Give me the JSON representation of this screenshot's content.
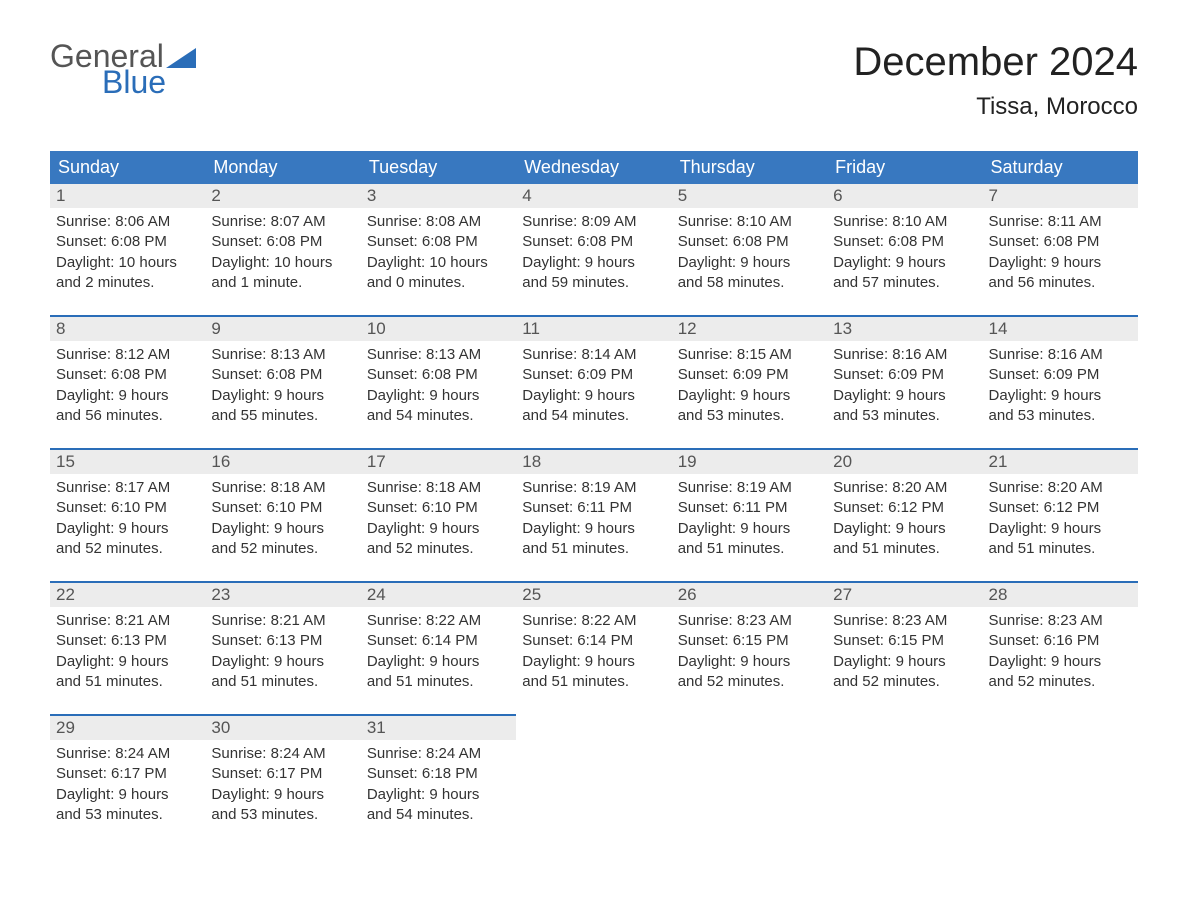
{
  "logo": {
    "top": "General",
    "bottom": "Blue",
    "text_color_top": "#555555",
    "text_color_bottom": "#2a6db8",
    "flag_color": "#2a6db8"
  },
  "title": "December 2024",
  "location": "Tissa, Morocco",
  "colors": {
    "header_bg": "#3878c0",
    "header_text": "#ffffff",
    "rule": "#2a6db8",
    "daynum_bg": "#ececec",
    "body_text": "#333333",
    "background": "#ffffff"
  },
  "typography": {
    "title_fontsize": 40,
    "location_fontsize": 24,
    "header_fontsize": 18,
    "daynum_fontsize": 17,
    "body_fontsize": 15
  },
  "day_headers": [
    "Sunday",
    "Monday",
    "Tuesday",
    "Wednesday",
    "Thursday",
    "Friday",
    "Saturday"
  ],
  "weeks": [
    [
      {
        "n": "1",
        "sunrise": "Sunrise: 8:06 AM",
        "sunset": "Sunset: 6:08 PM",
        "d1": "Daylight: 10 hours",
        "d2": "and 2 minutes."
      },
      {
        "n": "2",
        "sunrise": "Sunrise: 8:07 AM",
        "sunset": "Sunset: 6:08 PM",
        "d1": "Daylight: 10 hours",
        "d2": "and 1 minute."
      },
      {
        "n": "3",
        "sunrise": "Sunrise: 8:08 AM",
        "sunset": "Sunset: 6:08 PM",
        "d1": "Daylight: 10 hours",
        "d2": "and 0 minutes."
      },
      {
        "n": "4",
        "sunrise": "Sunrise: 8:09 AM",
        "sunset": "Sunset: 6:08 PM",
        "d1": "Daylight: 9 hours",
        "d2": "and 59 minutes."
      },
      {
        "n": "5",
        "sunrise": "Sunrise: 8:10 AM",
        "sunset": "Sunset: 6:08 PM",
        "d1": "Daylight: 9 hours",
        "d2": "and 58 minutes."
      },
      {
        "n": "6",
        "sunrise": "Sunrise: 8:10 AM",
        "sunset": "Sunset: 6:08 PM",
        "d1": "Daylight: 9 hours",
        "d2": "and 57 minutes."
      },
      {
        "n": "7",
        "sunrise": "Sunrise: 8:11 AM",
        "sunset": "Sunset: 6:08 PM",
        "d1": "Daylight: 9 hours",
        "d2": "and 56 minutes."
      }
    ],
    [
      {
        "n": "8",
        "sunrise": "Sunrise: 8:12 AM",
        "sunset": "Sunset: 6:08 PM",
        "d1": "Daylight: 9 hours",
        "d2": "and 56 minutes."
      },
      {
        "n": "9",
        "sunrise": "Sunrise: 8:13 AM",
        "sunset": "Sunset: 6:08 PM",
        "d1": "Daylight: 9 hours",
        "d2": "and 55 minutes."
      },
      {
        "n": "10",
        "sunrise": "Sunrise: 8:13 AM",
        "sunset": "Sunset: 6:08 PM",
        "d1": "Daylight: 9 hours",
        "d2": "and 54 minutes."
      },
      {
        "n": "11",
        "sunrise": "Sunrise: 8:14 AM",
        "sunset": "Sunset: 6:09 PM",
        "d1": "Daylight: 9 hours",
        "d2": "and 54 minutes."
      },
      {
        "n": "12",
        "sunrise": "Sunrise: 8:15 AM",
        "sunset": "Sunset: 6:09 PM",
        "d1": "Daylight: 9 hours",
        "d2": "and 53 minutes."
      },
      {
        "n": "13",
        "sunrise": "Sunrise: 8:16 AM",
        "sunset": "Sunset: 6:09 PM",
        "d1": "Daylight: 9 hours",
        "d2": "and 53 minutes."
      },
      {
        "n": "14",
        "sunrise": "Sunrise: 8:16 AM",
        "sunset": "Sunset: 6:09 PM",
        "d1": "Daylight: 9 hours",
        "d2": "and 53 minutes."
      }
    ],
    [
      {
        "n": "15",
        "sunrise": "Sunrise: 8:17 AM",
        "sunset": "Sunset: 6:10 PM",
        "d1": "Daylight: 9 hours",
        "d2": "and 52 minutes."
      },
      {
        "n": "16",
        "sunrise": "Sunrise: 8:18 AM",
        "sunset": "Sunset: 6:10 PM",
        "d1": "Daylight: 9 hours",
        "d2": "and 52 minutes."
      },
      {
        "n": "17",
        "sunrise": "Sunrise: 8:18 AM",
        "sunset": "Sunset: 6:10 PM",
        "d1": "Daylight: 9 hours",
        "d2": "and 52 minutes."
      },
      {
        "n": "18",
        "sunrise": "Sunrise: 8:19 AM",
        "sunset": "Sunset: 6:11 PM",
        "d1": "Daylight: 9 hours",
        "d2": "and 51 minutes."
      },
      {
        "n": "19",
        "sunrise": "Sunrise: 8:19 AM",
        "sunset": "Sunset: 6:11 PM",
        "d1": "Daylight: 9 hours",
        "d2": "and 51 minutes."
      },
      {
        "n": "20",
        "sunrise": "Sunrise: 8:20 AM",
        "sunset": "Sunset: 6:12 PM",
        "d1": "Daylight: 9 hours",
        "d2": "and 51 minutes."
      },
      {
        "n": "21",
        "sunrise": "Sunrise: 8:20 AM",
        "sunset": "Sunset: 6:12 PM",
        "d1": "Daylight: 9 hours",
        "d2": "and 51 minutes."
      }
    ],
    [
      {
        "n": "22",
        "sunrise": "Sunrise: 8:21 AM",
        "sunset": "Sunset: 6:13 PM",
        "d1": "Daylight: 9 hours",
        "d2": "and 51 minutes."
      },
      {
        "n": "23",
        "sunrise": "Sunrise: 8:21 AM",
        "sunset": "Sunset: 6:13 PM",
        "d1": "Daylight: 9 hours",
        "d2": "and 51 minutes."
      },
      {
        "n": "24",
        "sunrise": "Sunrise: 8:22 AM",
        "sunset": "Sunset: 6:14 PM",
        "d1": "Daylight: 9 hours",
        "d2": "and 51 minutes."
      },
      {
        "n": "25",
        "sunrise": "Sunrise: 8:22 AM",
        "sunset": "Sunset: 6:14 PM",
        "d1": "Daylight: 9 hours",
        "d2": "and 51 minutes."
      },
      {
        "n": "26",
        "sunrise": "Sunrise: 8:23 AM",
        "sunset": "Sunset: 6:15 PM",
        "d1": "Daylight: 9 hours",
        "d2": "and 52 minutes."
      },
      {
        "n": "27",
        "sunrise": "Sunrise: 8:23 AM",
        "sunset": "Sunset: 6:15 PM",
        "d1": "Daylight: 9 hours",
        "d2": "and 52 minutes."
      },
      {
        "n": "28",
        "sunrise": "Sunrise: 8:23 AM",
        "sunset": "Sunset: 6:16 PM",
        "d1": "Daylight: 9 hours",
        "d2": "and 52 minutes."
      }
    ],
    [
      {
        "n": "29",
        "sunrise": "Sunrise: 8:24 AM",
        "sunset": "Sunset: 6:17 PM",
        "d1": "Daylight: 9 hours",
        "d2": "and 53 minutes."
      },
      {
        "n": "30",
        "sunrise": "Sunrise: 8:24 AM",
        "sunset": "Sunset: 6:17 PM",
        "d1": "Daylight: 9 hours",
        "d2": "and 53 minutes."
      },
      {
        "n": "31",
        "sunrise": "Sunrise: 8:24 AM",
        "sunset": "Sunset: 6:18 PM",
        "d1": "Daylight: 9 hours",
        "d2": "and 54 minutes."
      },
      null,
      null,
      null,
      null
    ]
  ]
}
